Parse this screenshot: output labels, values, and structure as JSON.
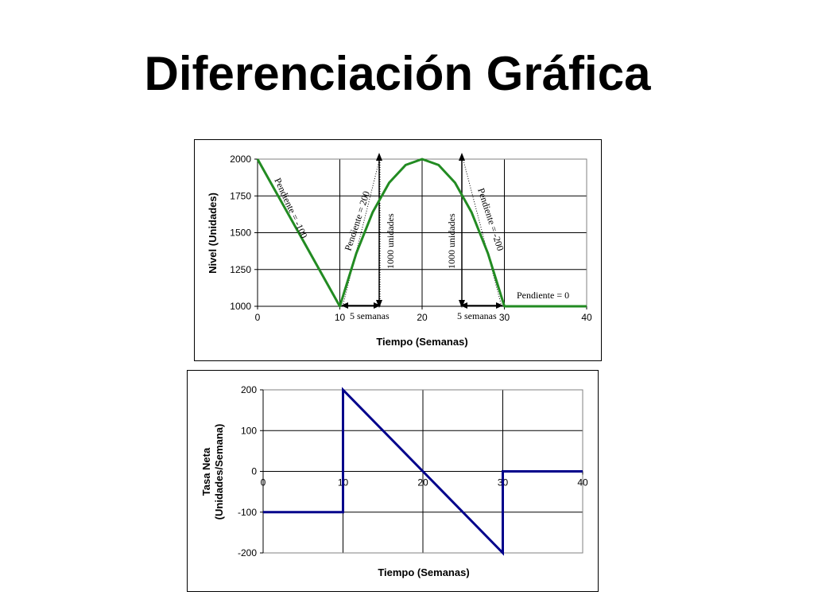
{
  "page": {
    "title": "Diferenciación Gráfica"
  },
  "chart_data": [
    {
      "type": "line",
      "xlabel": "Tiempo (Semanas)",
      "ylabel": "Nivel (Unidades)",
      "xlim": [
        0,
        40
      ],
      "ylim": [
        1000,
        2000
      ],
      "xticks": [
        "0",
        "10",
        "20",
        "30",
        "40"
      ],
      "yticks": [
        "1000",
        "1250",
        "1500",
        "1750",
        "2000"
      ],
      "grid": "vertical",
      "line_color": "#228B22",
      "series": [
        {
          "x": [
            0,
            10,
            12,
            14,
            16,
            18,
            20,
            22,
            24,
            26,
            28,
            30,
            40
          ],
          "values": [
            2000,
            1000,
            1360,
            1640,
            1840,
            1960,
            2000,
            1960,
            1840,
            1640,
            1360,
            1000,
            1000
          ]
        }
      ],
      "annotations": {
        "slope_neg100": "Pendiente = -100",
        "slope_200": "Pendiente = 200",
        "slope_neg200": "Pendiente = -200",
        "slope_0": "Pendiente = 0",
        "units_left": "1000 unidades",
        "units_right": "1000 unidades",
        "weeks_left": "5 semanas",
        "weeks_right": "5 semanas"
      }
    },
    {
      "type": "line",
      "xlabel": "Tiempo (Semanas)",
      "ylabel_line1": "Tasa Neta",
      "ylabel_line2": "(Unidades/Semana)",
      "xlim": [
        0,
        40
      ],
      "ylim": [
        -200,
        200
      ],
      "xticks": [
        "0",
        "10",
        "20",
        "30",
        "40"
      ],
      "yticks": [
        "-200",
        "-100",
        "0",
        "100",
        "200"
      ],
      "grid": "both",
      "line_color": "#00008B",
      "series": [
        {
          "x": [
            0,
            10,
            10,
            30,
            30,
            40
          ],
          "values": [
            -100,
            -100,
            200,
            -200,
            0,
            0
          ]
        }
      ]
    }
  ]
}
